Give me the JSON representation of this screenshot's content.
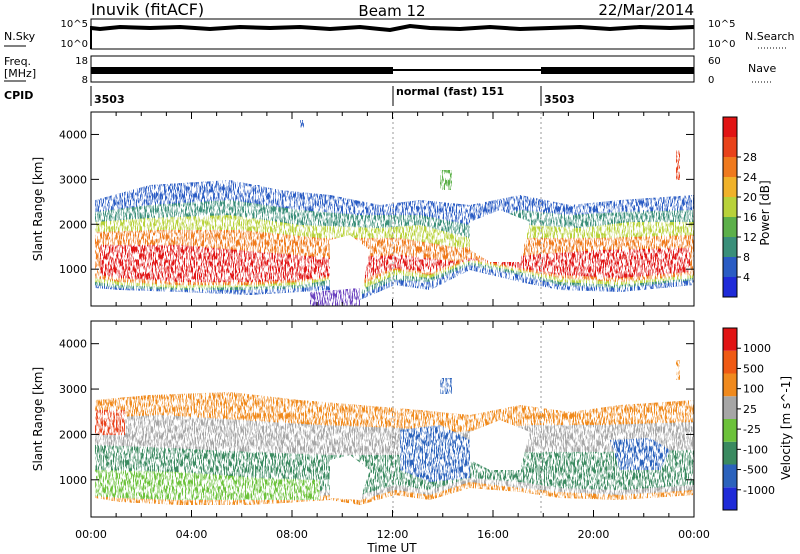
{
  "header": {
    "station": "Inuvik (fitACF)",
    "beam": "Beam 12",
    "date": "22/Mar/2014"
  },
  "params": {
    "nsky_label": "N.Sky",
    "nsearch_label": "N.Search",
    "freq_label_1": "Freq.",
    "freq_label_2": "[MHz]",
    "nave_label": "Nave",
    "cpid_label": "CPID",
    "nsky_ticks": [
      "10^5",
      "10^0"
    ],
    "nsearch_ticks": [
      "10^5",
      "10^0"
    ],
    "freq_ticks": [
      "18",
      "8"
    ],
    "nave_ticks": [
      "60",
      "0"
    ],
    "cpid_segments": [
      {
        "label": "3503",
        "start_hour": 0,
        "end_hour": 12
      },
      {
        "label": "normal (fast) 151",
        "start_hour": 12,
        "end_hour": 18
      },
      {
        "label": "3503",
        "start_hour": 18,
        "end_hour": 24
      }
    ]
  },
  "chart_data": [
    {
      "type": "heatmap",
      "title": "Power",
      "xlabel": "",
      "ylabel": "Slant Range [km]",
      "xlim_hours": [
        0,
        24
      ],
      "ylim_km": [
        180,
        4500
      ],
      "y_ticks": [
        1000,
        2000,
        3000,
        4000
      ],
      "colorbar": {
        "label": "Power [dB]",
        "ticks": [
          "4",
          "8",
          "12",
          "16",
          "20",
          "24",
          "28"
        ],
        "colors": [
          "#1f2bd8",
          "#2a5cc4",
          "#3a8f7a",
          "#5cb04a",
          "#b8d23a",
          "#f0b22a",
          "#ef7a1e",
          "#e8421a",
          "#e11414"
        ]
      },
      "echo_regions": [
        {
          "hours": [
            0,
            9.3
          ],
          "range_km": [
            550,
            2500
          ],
          "dominant": "strong"
        },
        {
          "hours": [
            9.5,
            18
          ],
          "range_km": [
            350,
            2600
          ],
          "dominant": "mixed"
        },
        {
          "hours": [
            18,
            24
          ],
          "range_km": [
            500,
            2700
          ],
          "dominant": "strong"
        }
      ]
    },
    {
      "type": "heatmap",
      "title": "Velocity",
      "xlabel": "Time UT",
      "ylabel": "Slant Range [km]",
      "xlim_hours": [
        0,
        24
      ],
      "ylim_km": [
        180,
        4500
      ],
      "x_ticks": [
        "00:00",
        "04:00",
        "08:00",
        "12:00",
        "16:00",
        "20:00",
        "00:00"
      ],
      "y_ticks": [
        1000,
        2000,
        3000,
        4000
      ],
      "colorbar": {
        "label": "Velocity [m s^-1]",
        "ticks": [
          "1000",
          "500",
          "100",
          "25",
          "-25",
          "-100",
          "-500",
          "-1000"
        ],
        "colors": [
          "#1f2bd8",
          "#2b62bc",
          "#3a8a60",
          "#6cc23a",
          "#a6a6a6",
          "#f08a1e",
          "#ef5a14",
          "#e11414"
        ]
      },
      "echo_regions": [
        {
          "hours": [
            0,
            9.5
          ],
          "range_km": [
            450,
            2500
          ],
          "dominant": "positive"
        },
        {
          "hours": [
            9.5,
            18
          ],
          "range_km": [
            350,
            2600
          ],
          "dominant": "mixed"
        },
        {
          "hours": [
            18,
            24
          ],
          "range_km": [
            450,
            2500
          ],
          "dominant": "mixed"
        }
      ]
    }
  ]
}
